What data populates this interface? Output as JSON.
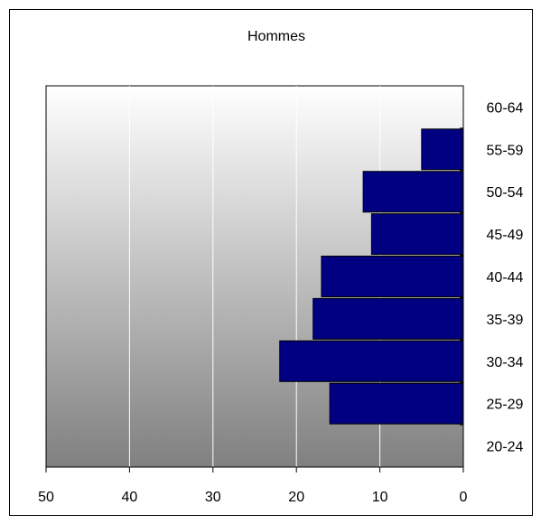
{
  "chart_data": {
    "type": "bar",
    "orientation": "horizontal",
    "title": "Hommes",
    "categories": [
      "20-24",
      "25-29",
      "30-34",
      "35-39",
      "40-44",
      "45-49",
      "50-54",
      "55-59",
      "60-64"
    ],
    "values": [
      0,
      16,
      22,
      18,
      17,
      11,
      12,
      5,
      0
    ],
    "x_ticks": [
      "50",
      "40",
      "30",
      "20",
      "10",
      "0"
    ],
    "xlim": [
      50,
      0
    ],
    "xlabel": "",
    "ylabel": "",
    "grid": true,
    "legend": "none",
    "colors": {
      "bar_fill": "#000080",
      "bar_stroke": "#000000",
      "plot_bg_top": "#ffffff",
      "plot_bg_bottom": "#808080",
      "gridline": "#ffffff"
    }
  }
}
